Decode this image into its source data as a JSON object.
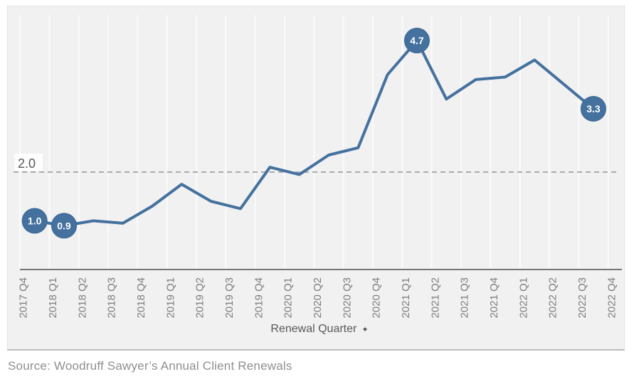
{
  "chart_data": {
    "type": "line",
    "title": "",
    "xlabel": "Renewal Quarter",
    "ylabel": "",
    "categories": [
      "2017 Q4",
      "2018 Q1",
      "2018 Q2",
      "2018 Q3",
      "2018 Q4",
      "2019 Q1",
      "2019 Q2",
      "2019 Q3",
      "2019 Q4",
      "2020 Q1",
      "2020 Q2",
      "2020 Q3",
      "2020 Q4",
      "2021 Q1",
      "2021 Q2",
      "2021 Q3",
      "2021 Q4",
      "2022 Q1",
      "2022 Q2",
      "2022 Q3",
      "2022 Q4"
    ],
    "values": [
      1.0,
      0.9,
      1.0,
      0.95,
      1.3,
      1.75,
      1.4,
      1.25,
      2.1,
      1.95,
      2.35,
      2.5,
      4.0,
      4.7,
      3.5,
      3.9,
      3.95,
      4.3,
      3.8,
      3.3,
      null
    ],
    "point_labels": [
      "1.0",
      "0.9",
      null,
      null,
      null,
      null,
      null,
      null,
      null,
      null,
      null,
      null,
      null,
      "4.7",
      null,
      null,
      null,
      null,
      null,
      "3.3",
      null
    ],
    "reference_line": {
      "value": 2.0,
      "label": "2.0"
    },
    "ylim": [
      0,
      5.2
    ],
    "grid": "vertical-only",
    "legend": "none",
    "colors": {
      "line": "#44719e",
      "marker_fill": "#44719e",
      "marker_stroke": "#3a6590",
      "marker_text": "#ffffff",
      "gridline": "#fbfbfb",
      "reference_line": "#ababab",
      "reference_label_text": "#595959",
      "axis_line": "#4d4d4d",
      "tick_label": "#7f7f7f",
      "axis_title": "#595959",
      "plot_background": "#f1f1f2"
    }
  },
  "icons": {
    "axis_sort_icon": "✦"
  },
  "footer": {
    "source": "Source: Woodruff Sawyer’s Annual Client Renewals"
  }
}
